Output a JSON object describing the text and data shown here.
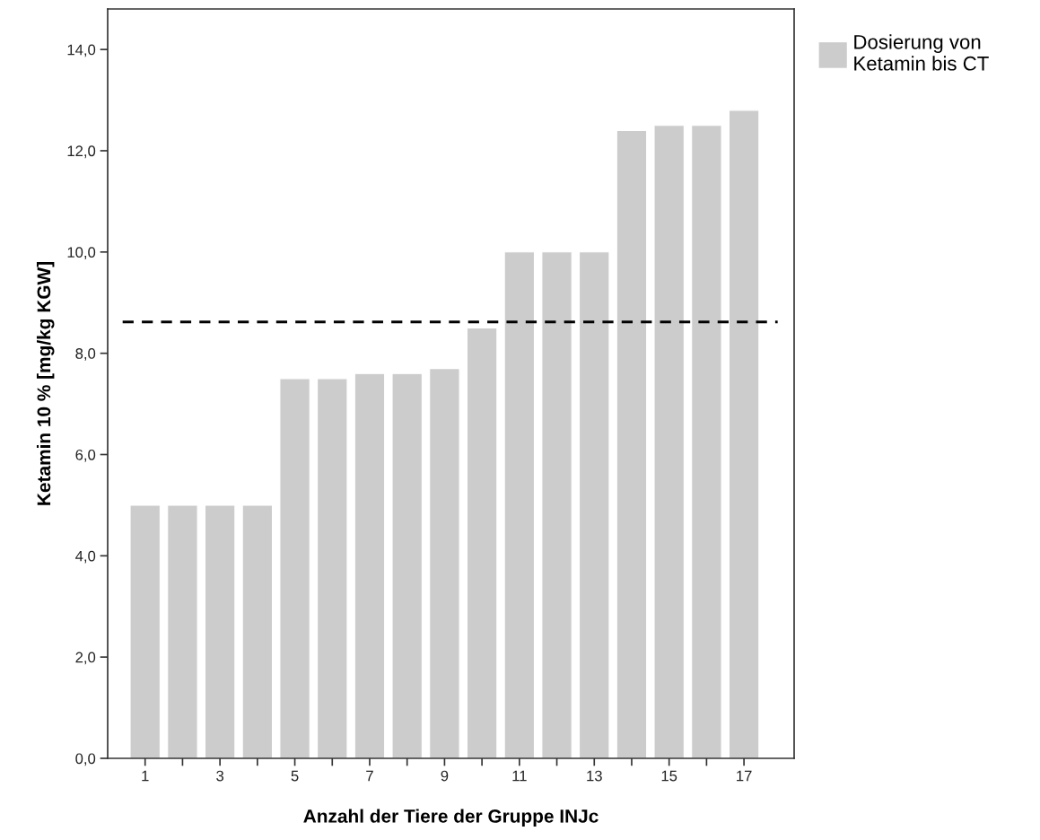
{
  "chart_data": {
    "type": "bar",
    "xlabel": "Anzahl der Tiere der Gruppe INJc",
    "ylabel": "Ketamin 10 % [mg/kg KGW]",
    "categories": [
      "1",
      null,
      "3",
      null,
      "5",
      null,
      "7",
      null,
      "9",
      null,
      "11",
      null,
      "13",
      null,
      "15",
      null,
      "17"
    ],
    "series": [
      {
        "name": "Dosierung von\nKetamin bis CT",
        "color": "#cccccc",
        "values": [
          5.0,
          5.0,
          5.0,
          5.0,
          7.5,
          7.5,
          7.6,
          7.6,
          7.7,
          8.5,
          10.0,
          10.0,
          10.0,
          12.4,
          12.5,
          12.5,
          12.8
        ]
      }
    ],
    "ylim": [
      0,
      14.8
    ],
    "yticks": [
      {
        "value": 0,
        "label": "0,0"
      },
      {
        "value": 2,
        "label": "2,0"
      },
      {
        "value": 4,
        "label": "4,0"
      },
      {
        "value": 6,
        "label": "6,0"
      },
      {
        "value": 8,
        "label": "8,0"
      },
      {
        "value": 10,
        "label": "10,0"
      },
      {
        "value": 12,
        "label": "12,0"
      },
      {
        "value": 14,
        "label": "14,0"
      }
    ],
    "ref_lines": [
      {
        "axis": "y",
        "value": 8.62,
        "color": "#000000",
        "line_style": "dashed"
      }
    ],
    "legend": "right",
    "grid": false
  }
}
